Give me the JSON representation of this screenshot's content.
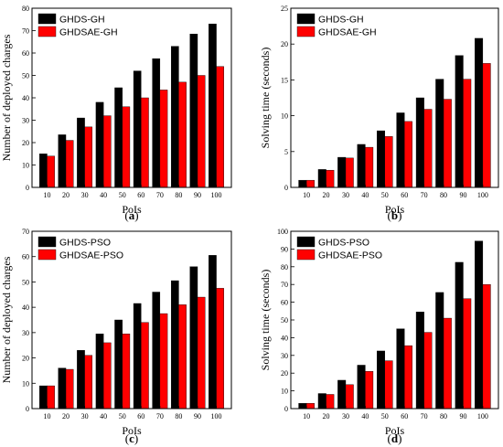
{
  "colors": {
    "series_1": "#000000",
    "series_2": "#ff0000"
  },
  "chart_data": [
    {
      "type": "bar",
      "panel_label": "a",
      "categories": [
        "10",
        "20",
        "30",
        "40",
        "50",
        "60",
        "70",
        "80",
        "90",
        "100"
      ],
      "series": [
        {
          "name": "GHDS-GH",
          "values": [
            15,
            23.5,
            31,
            38,
            44.5,
            52,
            57.5,
            63,
            68.5,
            73
          ]
        },
        {
          "name": "GHDSAE-GH",
          "values": [
            14,
            21,
            27,
            32,
            36,
            40,
            43.5,
            47,
            50,
            54
          ]
        }
      ],
      "xlabel": "PoIs",
      "ylabel": "Number of deployed charges",
      "ylim": [
        0,
        80
      ],
      "yticks": [
        0,
        10,
        20,
        30,
        40,
        50,
        60,
        70,
        80
      ],
      "legend": "top-left",
      "grid": false
    },
    {
      "type": "bar",
      "panel_label": "b",
      "categories": [
        "10",
        "20",
        "30",
        "40",
        "50",
        "60",
        "70",
        "80",
        "90",
        "100"
      ],
      "series": [
        {
          "name": "GHDS-GH",
          "values": [
            1,
            2.5,
            4.2,
            6,
            7.9,
            10.4,
            12.5,
            15.1,
            18.4,
            20.8
          ]
        },
        {
          "name": "GHDSAE-GH",
          "values": [
            1,
            2.4,
            4.1,
            5.6,
            7.1,
            9.2,
            10.9,
            12.3,
            15.1,
            17.3
          ]
        }
      ],
      "xlabel": "PoIs",
      "ylabel": "Solving time (seconds)",
      "ylim": [
        0,
        25
      ],
      "yticks": [
        0,
        5,
        10,
        15,
        20,
        25
      ],
      "legend": "top-left",
      "grid": false
    },
    {
      "type": "bar",
      "panel_label": "c",
      "categories": [
        "10",
        "20",
        "30",
        "40",
        "50",
        "60",
        "70",
        "80",
        "90",
        "100"
      ],
      "series": [
        {
          "name": "GHDS-PSO",
          "values": [
            9,
            16,
            23,
            29.5,
            35,
            41.5,
            46,
            50.5,
            56,
            60.5
          ]
        },
        {
          "name": "GHDSAE-PSO",
          "values": [
            9,
            15.5,
            21,
            26,
            29.5,
            34,
            37.5,
            41,
            44,
            47.5
          ]
        }
      ],
      "xlabel": "PoIs",
      "ylabel": "Number of deployed charges",
      "ylim": [
        0,
        70
      ],
      "yticks": [
        0,
        10,
        20,
        30,
        40,
        50,
        60,
        70
      ],
      "legend": "top-left",
      "grid": false
    },
    {
      "type": "bar",
      "panel_label": "d",
      "categories": [
        "10",
        "20",
        "30",
        "40",
        "50",
        "60",
        "70",
        "80",
        "90",
        "100"
      ],
      "series": [
        {
          "name": "GHDS-PSO",
          "values": [
            3,
            8.5,
            16,
            24.5,
            32.5,
            45,
            54.5,
            65.5,
            82.5,
            94.5
          ]
        },
        {
          "name": "GHDSAE-PSO",
          "values": [
            3,
            8,
            13.5,
            21,
            27,
            35.5,
            43,
            51,
            62,
            70
          ]
        }
      ],
      "xlabel": "PoIs",
      "ylabel": "Solving time (seconds)",
      "ylim": [
        0,
        100
      ],
      "yticks": [
        0,
        10,
        20,
        30,
        40,
        50,
        60,
        70,
        80,
        90,
        100
      ],
      "legend": "top-left",
      "grid": false
    }
  ]
}
